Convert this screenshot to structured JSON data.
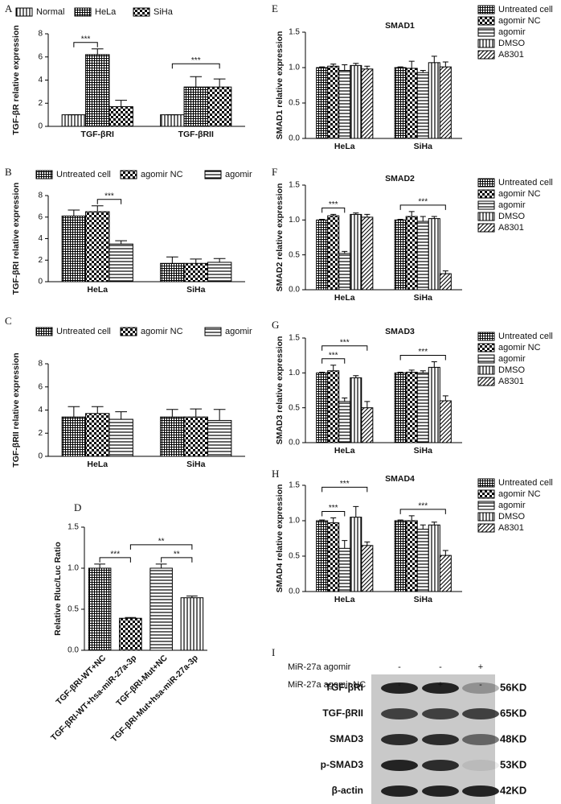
{
  "chart_data": [
    {
      "type": "bar",
      "panel": "A",
      "ylabel": "TGF-βR relative expression",
      "categories": [
        "TGF-βRI",
        "TGF-βRII"
      ],
      "series": [
        {
          "name": "Normal",
          "color": "#000000",
          "values": [
            1,
            1
          ],
          "errors": [
            0,
            0
          ]
        },
        {
          "name": "HeLa",
          "color": "#000000",
          "values": [
            6.2,
            3.4
          ],
          "errors": [
            0.5,
            0.9
          ]
        },
        {
          "name": "SiHa",
          "color": "#000000",
          "values": [
            1.7,
            3.4
          ],
          "errors": [
            0.55,
            0.7
          ]
        }
      ],
      "ylim": [
        0,
        8
      ],
      "yticks": [
        0,
        2,
        4,
        6,
        8
      ],
      "annotations": [
        "***",
        "***"
      ]
    },
    {
      "type": "bar",
      "panel": "B",
      "ylabel": "TGF-βRI relative expression",
      "categories": [
        "HeLa",
        "SiHa"
      ],
      "series": [
        {
          "name": "Untreated cell",
          "color": "#000000",
          "values": [
            6.1,
            1.7
          ],
          "errors": [
            0.55,
            0.6
          ]
        },
        {
          "name": "agomir NC",
          "color": "#000000",
          "values": [
            6.5,
            1.7
          ],
          "errors": [
            0.55,
            0.4
          ]
        },
        {
          "name": "agomir",
          "color": "#000000",
          "values": [
            3.5,
            1.8
          ],
          "errors": [
            0.3,
            0.35
          ]
        }
      ],
      "ylim": [
        0,
        8
      ],
      "yticks": [
        0,
        2,
        4,
        6,
        8
      ],
      "annotations": [
        "***"
      ]
    },
    {
      "type": "bar",
      "panel": "C",
      "ylabel": "TGF-βRII relative expression",
      "categories": [
        "HeLa",
        "SiHa"
      ],
      "series": [
        {
          "name": "Untreated cell",
          "color": "#000000",
          "values": [
            3.4,
            3.4
          ],
          "errors": [
            0.9,
            0.65
          ]
        },
        {
          "name": "agomir NC",
          "color": "#000000",
          "values": [
            3.7,
            3.4
          ],
          "errors": [
            0.6,
            0.7
          ]
        },
        {
          "name": "agomir",
          "color": "#000000",
          "values": [
            3.2,
            3.1
          ],
          "errors": [
            0.65,
            0.95
          ]
        }
      ],
      "ylim": [
        0,
        8
      ],
      "yticks": [
        0,
        2,
        4,
        6,
        8
      ],
      "annotations": []
    },
    {
      "type": "bar",
      "panel": "D",
      "ylabel": "Relative Rluc/Luc Ratio",
      "categories": [
        "TGF-βRI-WT+NC",
        "TGF-βRI-WT+hsa-miR-27a-3p",
        "TGF-βRI-Mut+NC",
        "TGF-βRI-Mut+hsa-miR-27a-3p"
      ],
      "series": [
        {
          "color": "#000000",
          "values": [
            1.0,
            0.39,
            1.0,
            0.64
          ],
          "errors": [
            0.05,
            0.01,
            0.05,
            0.02
          ]
        }
      ],
      "ylim": [
        0,
        1.5
      ],
      "yticks": [
        {
          "value": 0,
          "label": "0.0"
        },
        {
          "value": 0.5,
          "label": "0.5"
        },
        {
          "value": 1,
          "label": "1.0"
        },
        {
          "value": 1.5,
          "label": "1.5"
        }
      ],
      "annotations": [
        "***",
        "**",
        "**"
      ]
    },
    {
      "type": "bar",
      "panel": "E",
      "title": "SMAD1",
      "ylabel": "SMAD1 relative expression",
      "categories": [
        "HeLa",
        "SiHa"
      ],
      "series": [
        {
          "name": "Untreated cell",
          "color": "#000000",
          "values": [
            1.0,
            1.0
          ],
          "errors": [
            0.01,
            0.01
          ]
        },
        {
          "name": "agomir NC",
          "color": "#000000",
          "values": [
            1.02,
            0.99
          ],
          "errors": [
            0.03,
            0.1
          ]
        },
        {
          "name": "agomir",
          "color": "#000000",
          "values": [
            0.96,
            0.93
          ],
          "errors": [
            0.08,
            0.03
          ]
        },
        {
          "name": "DMSO",
          "color": "#000000",
          "values": [
            1.03,
            1.07
          ],
          "errors": [
            0.03,
            0.09
          ]
        },
        {
          "name": "A8301",
          "color": "#000000",
          "values": [
            0.98,
            1.01
          ],
          "errors": [
            0.04,
            0.07
          ]
        }
      ],
      "ylim": [
        0,
        1.5
      ],
      "yticks": [
        {
          "value": 0,
          "label": "0.0"
        },
        {
          "value": 0.5,
          "label": "0.5"
        },
        {
          "value": 1,
          "label": "1.0"
        },
        {
          "value": 1.5,
          "label": "1.5"
        }
      ],
      "annotations": []
    },
    {
      "type": "bar",
      "panel": "F",
      "title": "SMAD2",
      "ylabel": "SMAD2 relative expression",
      "categories": [
        "HeLa",
        "SiHa"
      ],
      "series": [
        {
          "name": "Untreated cell",
          "color": "#000000",
          "values": [
            1.0,
            1.0
          ],
          "errors": [
            0.01,
            0.01
          ]
        },
        {
          "name": "agomir NC",
          "color": "#000000",
          "values": [
            1.06,
            1.05
          ],
          "errors": [
            0.02,
            0.07
          ]
        },
        {
          "name": "agomir",
          "color": "#000000",
          "values": [
            0.52,
            0.98
          ],
          "errors": [
            0.03,
            0.07
          ]
        },
        {
          "name": "DMSO",
          "color": "#000000",
          "values": [
            1.08,
            1.02
          ],
          "errors": [
            0.02,
            0.03
          ]
        },
        {
          "name": "A8301",
          "color": "#000000",
          "values": [
            1.04,
            0.23
          ],
          "errors": [
            0.04,
            0.04
          ]
        }
      ],
      "ylim": [
        0,
        1.5
      ],
      "yticks": [
        {
          "value": 0,
          "label": "0.0"
        },
        {
          "value": 0.5,
          "label": "0.5"
        },
        {
          "value": 1,
          "label": "1.0"
        },
        {
          "value": 1.5,
          "label": "1.5"
        }
      ],
      "annotations": [
        "***",
        "***"
      ]
    },
    {
      "type": "bar",
      "panel": "G",
      "title": "SMAD3",
      "ylabel": "SMAD3 relative expression",
      "categories": [
        "HeLa",
        "SiHa"
      ],
      "series": [
        {
          "name": "Untreated cell",
          "color": "#000000",
          "values": [
            1.0,
            1.0
          ],
          "errors": [
            0.01,
            0.01
          ]
        },
        {
          "name": "agomir NC",
          "color": "#000000",
          "values": [
            1.03,
            1.01
          ],
          "errors": [
            0.08,
            0.03
          ]
        },
        {
          "name": "agomir",
          "color": "#000000",
          "values": [
            0.59,
            1.0
          ],
          "errors": [
            0.05,
            0.03
          ]
        },
        {
          "name": "DMSO",
          "color": "#000000",
          "values": [
            0.93,
            1.08
          ],
          "errors": [
            0.03,
            0.08
          ]
        },
        {
          "name": "A8301",
          "color": "#000000",
          "values": [
            0.5,
            0.6
          ],
          "errors": [
            0.09,
            0.07
          ]
        }
      ],
      "ylim": [
        0,
        1.5
      ],
      "yticks": [
        {
          "value": 0,
          "label": "0.0"
        },
        {
          "value": 0.5,
          "label": "0.5"
        },
        {
          "value": 1,
          "label": "1.0"
        },
        {
          "value": 1.5,
          "label": "1.5"
        }
      ],
      "annotations": [
        "***",
        "***",
        "***"
      ]
    },
    {
      "type": "bar",
      "panel": "H",
      "title": "SMAD4",
      "ylabel": "SMAD4 relative expression",
      "categories": [
        "HeLa",
        "SiHa"
      ],
      "series": [
        {
          "name": "Untreated cell",
          "color": "#000000",
          "values": [
            1.0,
            1.0
          ],
          "errors": [
            0.01,
            0.01
          ]
        },
        {
          "name": "agomir NC",
          "color": "#000000",
          "values": [
            0.97,
            1.0
          ],
          "errors": [
            0.07,
            0.07
          ]
        },
        {
          "name": "agomir",
          "color": "#000000",
          "values": [
            0.61,
            0.88
          ],
          "errors": [
            0.11,
            0.06
          ]
        },
        {
          "name": "DMSO",
          "color": "#000000",
          "values": [
            1.05,
            0.94
          ],
          "errors": [
            0.15,
            0.04
          ]
        },
        {
          "name": "A8301",
          "color": "#000000",
          "values": [
            0.65,
            0.51
          ],
          "errors": [
            0.05,
            0.07
          ]
        }
      ],
      "ylim": [
        0,
        1.5
      ],
      "yticks": [
        {
          "value": 0,
          "label": "0.0"
        },
        {
          "value": 0.5,
          "label": "0.5"
        },
        {
          "value": 1,
          "label": "1.0"
        },
        {
          "value": 1.5,
          "label": "1.5"
        }
      ],
      "annotations": [
        "***",
        "***",
        "***"
      ]
    }
  ],
  "western_blot": {
    "panel": "I",
    "conditions": [
      {
        "label": "MiR-27a agomir",
        "signs": [
          "-",
          "-",
          "+"
        ]
      },
      {
        "label": "MiR-27a agomir NC",
        "signs": [
          "-",
          "+",
          "-"
        ]
      }
    ],
    "rows": [
      {
        "protein": "TGF-βRI",
        "size": "56KD"
      },
      {
        "protein": "TGF-βRII",
        "size": "65KD"
      },
      {
        "protein": "SMAD3",
        "size": "48KD"
      },
      {
        "protein": "p-SMAD3",
        "size": "53KD"
      },
      {
        "protein": "β-actin",
        "size": "42KD"
      }
    ]
  }
}
